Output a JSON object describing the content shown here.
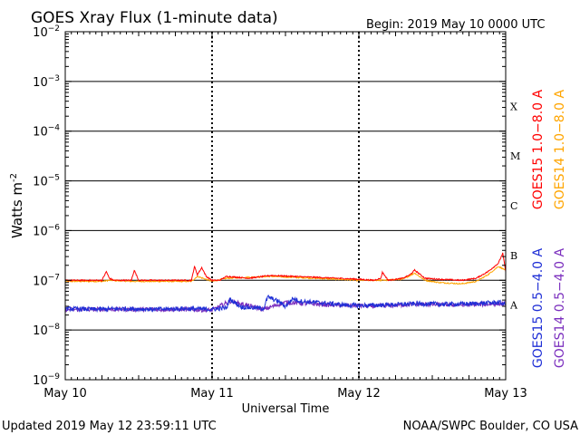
{
  "chart_data": {
    "type": "line",
    "title": "GOES Xray Flux (1-minute data)",
    "begin_label": "Begin:  2019 May 10 0000 UTC",
    "xlabel": "Universal Time",
    "ylabel_main": "Watts m",
    "ylabel_sup": "-2",
    "x_days": [
      0,
      3
    ],
    "x_tick_labels": [
      "May 10",
      "May 11",
      "May 12",
      "May 13"
    ],
    "ylim_log10": [
      -9,
      -2
    ],
    "y_tick_exponents": [
      -2,
      -3,
      -4,
      -5,
      -6,
      -7,
      -8,
      -9
    ],
    "y_tick_base": "10",
    "flare_classes": [
      {
        "label": "X",
        "log10": -3.5
      },
      {
        "label": "M",
        "log10": -4.5
      },
      {
        "label": "C",
        "log10": -5.5
      },
      {
        "label": "B",
        "log10": -6.5
      },
      {
        "label": "A",
        "log10": -7.5
      }
    ],
    "legend": {
      "right_upper": [
        {
          "text": "GOES15 1.0−8.0 A",
          "color": "#ff0000"
        },
        {
          "text": "GOES14 1.0−8.0 A",
          "color": "#ffa500"
        }
      ],
      "right_lower": [
        {
          "text": "GOES15 0.5−4.0 A",
          "color": "#1f2fd6"
        },
        {
          "text": "GOES14 0.5−4.0 A",
          "color": "#7b2fbe"
        }
      ]
    },
    "series": [
      {
        "name": "GOES15 1.0−8.0 A",
        "color": "#ff0000",
        "x": [
          0,
          0.25,
          0.28,
          0.3,
          0.33,
          0.45,
          0.47,
          0.5,
          0.6,
          0.75,
          0.86,
          0.88,
          0.9,
          0.93,
          0.96,
          1.0,
          1.05,
          1.1,
          1.25,
          1.4,
          1.55,
          1.7,
          1.85,
          2.0,
          2.1,
          2.15,
          2.16,
          2.2,
          2.3,
          2.35,
          2.38,
          2.45,
          2.55,
          2.7,
          2.8,
          2.88,
          2.95,
          2.98,
          3.0
        ],
        "y": [
          1e-07,
          1e-07,
          1.5e-07,
          1.1e-07,
          1e-07,
          1e-07,
          1.6e-07,
          1e-07,
          1e-07,
          1e-07,
          1e-07,
          1.9e-07,
          1.3e-07,
          1.8e-07,
          1.2e-07,
          1e-07,
          1e-07,
          1.2e-07,
          1.1e-07,
          1.25e-07,
          1.2e-07,
          1.15e-07,
          1.1e-07,
          1.05e-07,
          1e-07,
          1.1e-07,
          1.45e-07,
          1e-07,
          1.1e-07,
          1.3e-07,
          1.6e-07,
          1.1e-07,
          1.05e-07,
          1e-07,
          1.1e-07,
          1.5e-07,
          2.2e-07,
          3.5e-07,
          1.5e-07
        ]
      },
      {
        "name": "GOES14 1.0−8.0 A",
        "color": "#ffa500",
        "x": [
          0,
          0.25,
          0.3,
          0.45,
          0.5,
          0.86,
          0.9,
          1.0,
          1.1,
          1.4,
          1.7,
          2.0,
          2.15,
          2.3,
          2.38,
          2.45,
          2.55,
          2.7,
          2.8,
          2.88,
          2.95,
          3.0
        ],
        "y": [
          9.5e-08,
          9.5e-08,
          1e-07,
          9.5e-08,
          9.5e-08,
          9.5e-08,
          1.2e-07,
          9.5e-08,
          1.1e-07,
          1.2e-07,
          1.1e-07,
          1e-07,
          1e-07,
          1.05e-07,
          1.4e-07,
          1e-07,
          9e-08,
          8.5e-08,
          9.5e-08,
          1.3e-07,
          1.9e-07,
          1.6e-07
        ]
      },
      {
        "name": "GOES15 0.5−4.0 A",
        "color": "#1f2fd6",
        "x": [
          0,
          0.2,
          0.4,
          0.6,
          0.8,
          1.0,
          1.1,
          1.12,
          1.2,
          1.35,
          1.38,
          1.45,
          1.5,
          1.55,
          1.6,
          1.7,
          1.8,
          1.9,
          2.0,
          2.2,
          2.4,
          2.6,
          2.8,
          2.95,
          3.0
        ],
        "y": [
          2.7e-08,
          2.6e-08,
          2.7e-08,
          2.6e-08,
          2.7e-08,
          2.6e-08,
          2.8e-08,
          4.2e-08,
          2.9e-08,
          2.7e-08,
          4.6e-08,
          3.8e-08,
          3e-08,
          4.3e-08,
          3.8e-08,
          3.6e-08,
          3.4e-08,
          3.2e-08,
          3.1e-08,
          3.2e-08,
          3.4e-08,
          3.3e-08,
          3.4e-08,
          3.6e-08,
          3.3e-08
        ]
      },
      {
        "name": "GOES14 0.5−4.0 A",
        "color": "#7b2fbe",
        "x": [
          0,
          0.4,
          0.8,
          1.0,
          1.12,
          1.35,
          1.5,
          1.8,
          2.1,
          2.4,
          2.7,
          3.0
        ],
        "y": [
          2.6e-08,
          2.6e-08,
          2.6e-08,
          2.5e-08,
          3.8e-08,
          2.6e-08,
          3.6e-08,
          3.2e-08,
          3e-08,
          3.3e-08,
          3.2e-08,
          3.4e-08
        ]
      }
    ]
  },
  "footer": {
    "updated": "Updated 2019 May 12 23:59:11 UTC",
    "credit": "NOAA/SWPC Boulder, CO USA"
  }
}
